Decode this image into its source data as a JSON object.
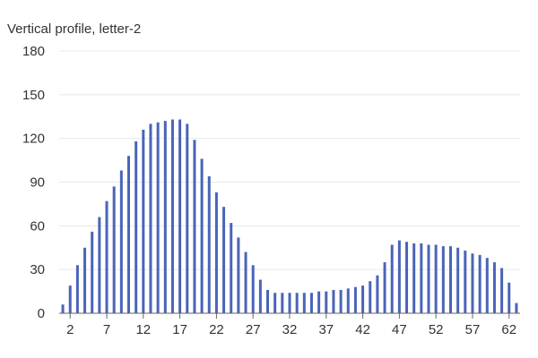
{
  "chart_data": {
    "type": "bar",
    "title": "Vertical profile, letter-2",
    "xlabel": "",
    "ylabel": "",
    "ylim": [
      0,
      180
    ],
    "yticks": [
      0,
      30,
      60,
      90,
      120,
      150,
      180
    ],
    "x": [
      1,
      2,
      3,
      4,
      5,
      6,
      7,
      8,
      9,
      10,
      11,
      12,
      13,
      14,
      15,
      16,
      17,
      18,
      19,
      20,
      21,
      22,
      23,
      24,
      25,
      26,
      27,
      28,
      29,
      30,
      31,
      32,
      33,
      34,
      35,
      36,
      37,
      38,
      39,
      40,
      41,
      42,
      43,
      44,
      45,
      46,
      47,
      48,
      49,
      50,
      51,
      52,
      53,
      54,
      55,
      56,
      57,
      58,
      59,
      60,
      61,
      62,
      63
    ],
    "xtick_labels": [
      "2",
      "7",
      "12",
      "17",
      "22",
      "27",
      "32",
      "37",
      "42",
      "47",
      "52",
      "57",
      "62"
    ],
    "xtick_values": [
      2,
      7,
      12,
      17,
      22,
      27,
      32,
      37,
      42,
      47,
      52,
      57,
      62
    ],
    "values": [
      6,
      19,
      33,
      45,
      56,
      66,
      77,
      87,
      98,
      108,
      118,
      126,
      130,
      131,
      132,
      133,
      133,
      130,
      119,
      106,
      94,
      83,
      73,
      62,
      52,
      42,
      33,
      23,
      16,
      14,
      14,
      14,
      14,
      14,
      14,
      15,
      15,
      16,
      16,
      17,
      18,
      19,
      22,
      26,
      35,
      47,
      50,
      49,
      48,
      48,
      47,
      47,
      46,
      46,
      45,
      43,
      41,
      40,
      38,
      35,
      31,
      21,
      7
    ],
    "bar_color": "#4a64b8",
    "grid": true
  }
}
